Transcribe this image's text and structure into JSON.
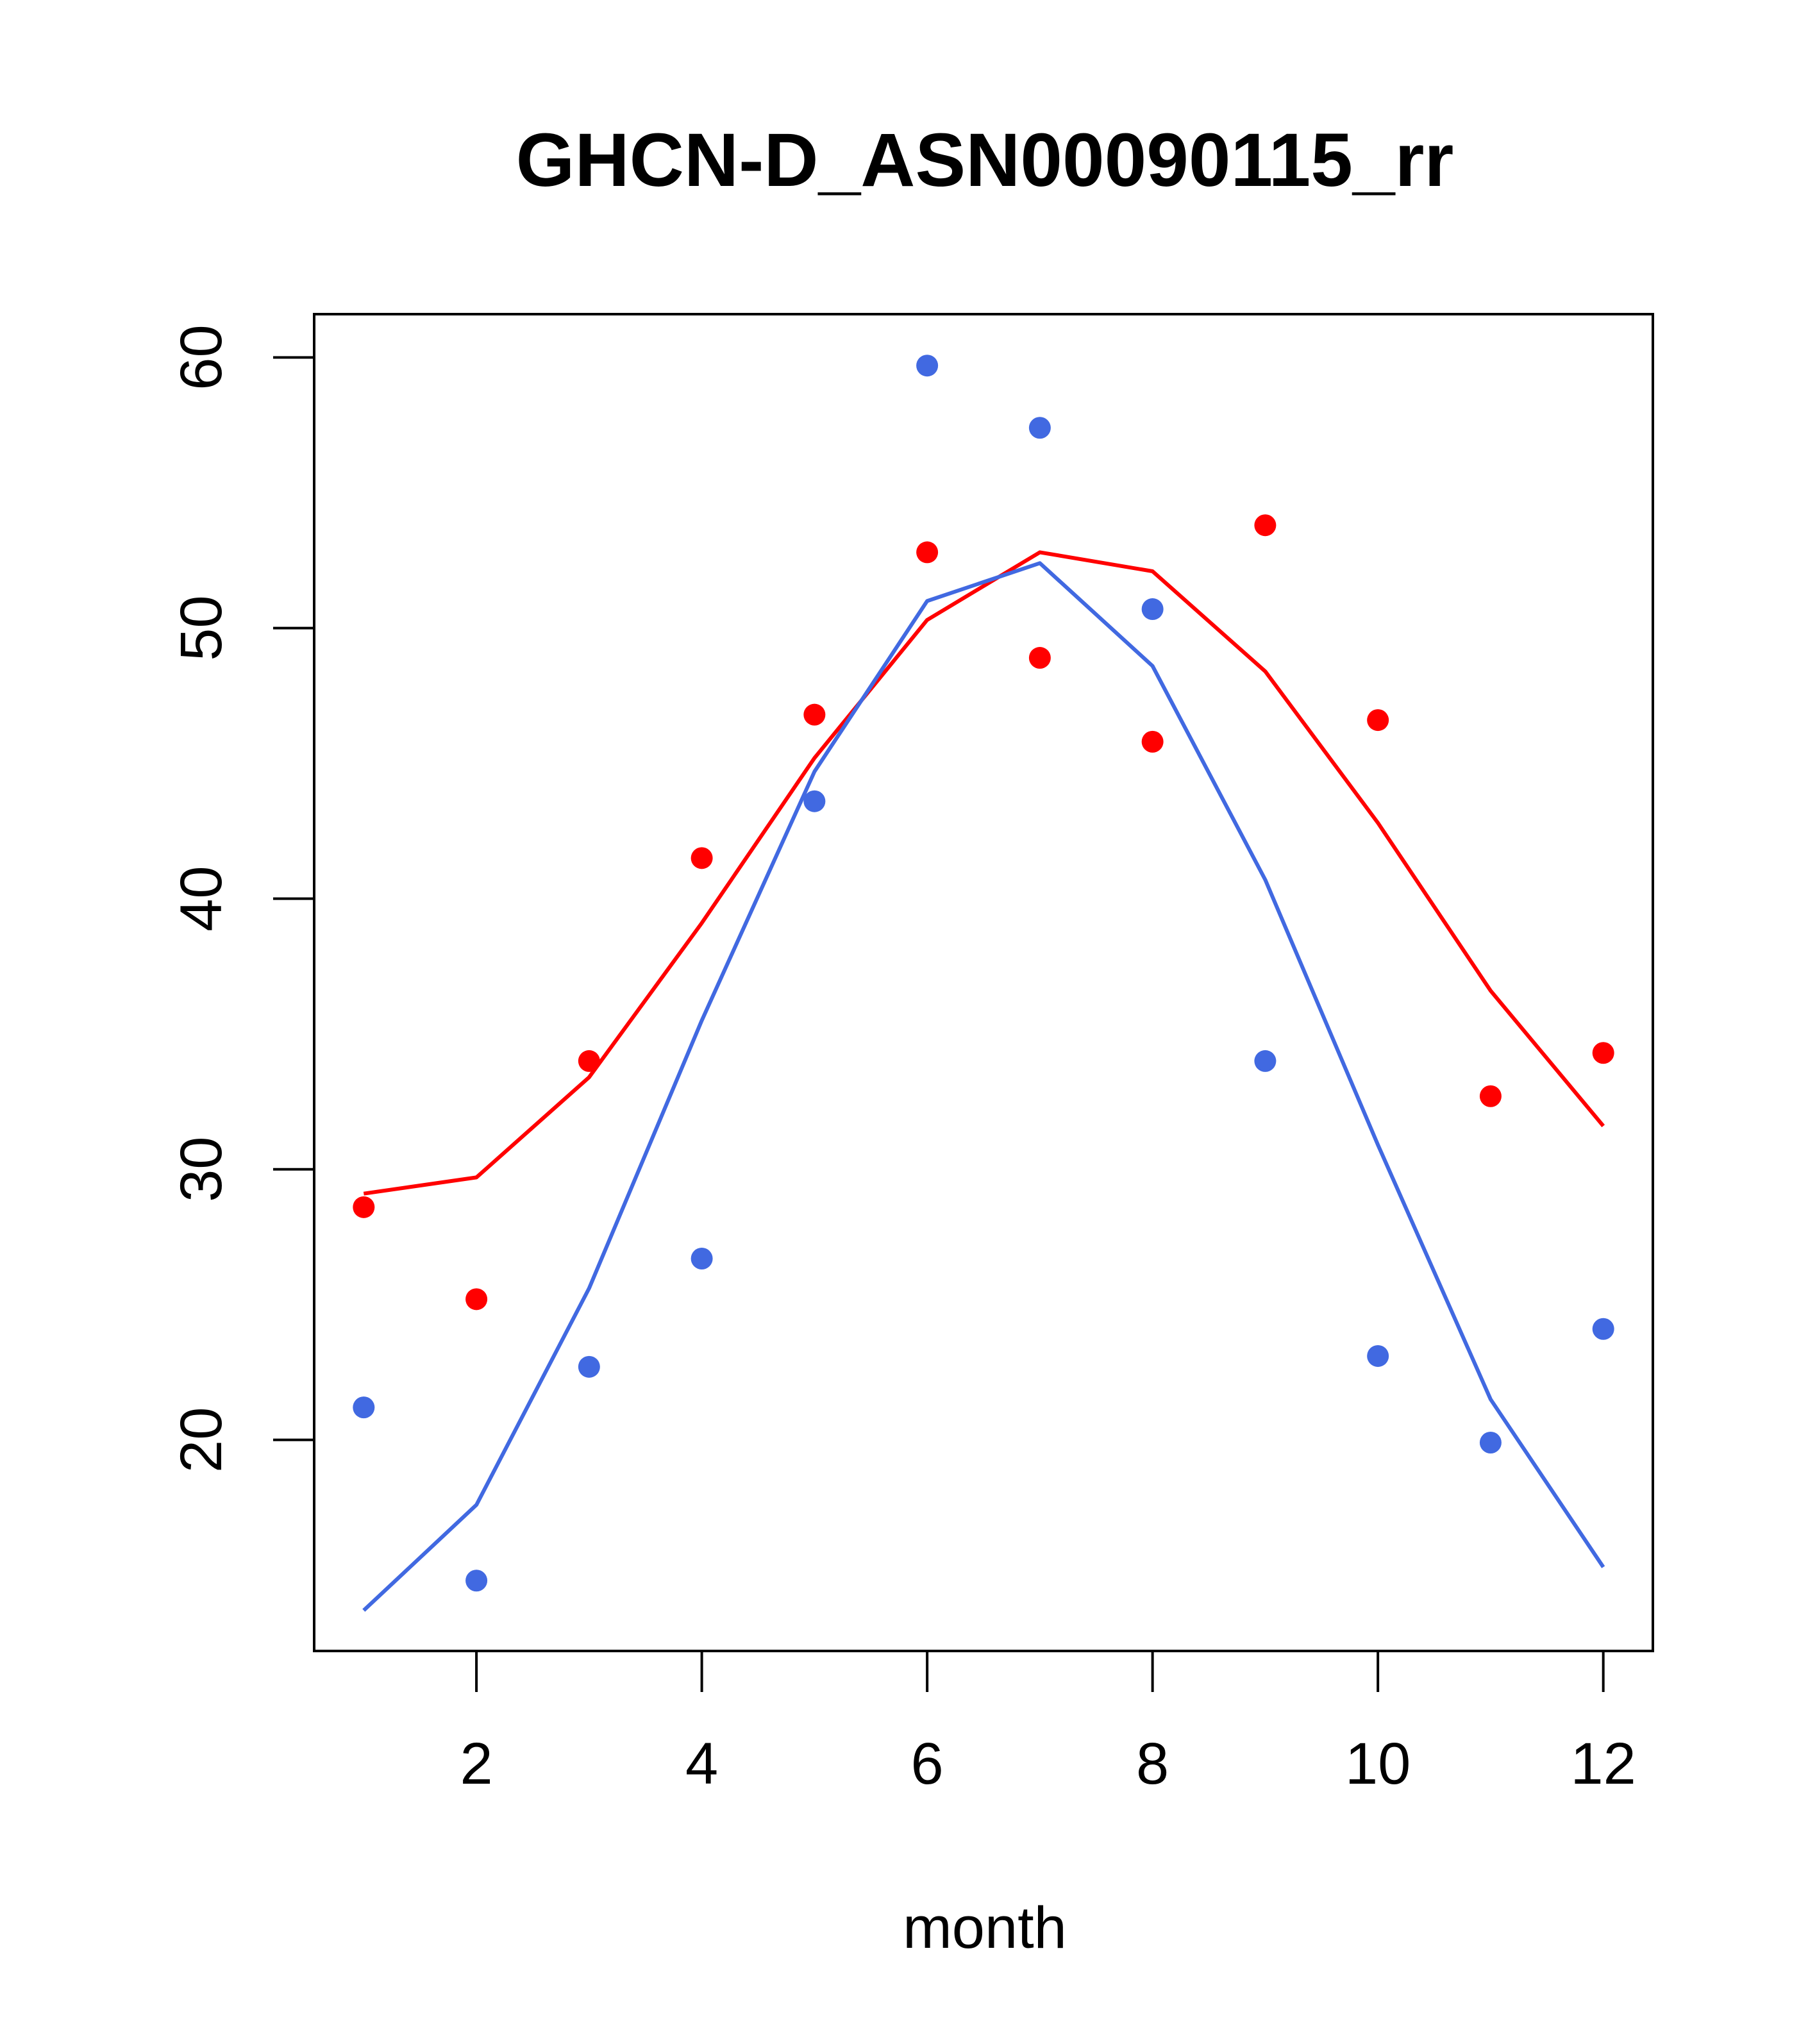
{
  "chart_data": {
    "type": "scatter",
    "title": "GHCN-D_ASN00090115_rr",
    "xlabel": "month",
    "ylabel": "",
    "xlim": [
      0.56,
      12.44
    ],
    "ylim": [
      12.2,
      61.6
    ],
    "x_ticks": [
      2,
      4,
      6,
      8,
      10,
      12
    ],
    "y_ticks": [
      20,
      30,
      40,
      50,
      60
    ],
    "grid": false,
    "legend": "none",
    "series": [
      {
        "color": "#ff0000",
        "points_x": [
          1,
          2,
          3,
          4,
          5,
          6,
          7,
          8,
          9,
          10,
          11,
          12
        ],
        "points_y": [
          28.6,
          25.2,
          34.0,
          41.5,
          46.8,
          52.8,
          48.9,
          45.8,
          53.8,
          46.6,
          32.7,
          34.3
        ],
        "line_x": [
          1,
          2,
          3,
          4,
          5,
          6,
          7,
          8,
          9,
          10,
          11,
          12
        ],
        "line_y": [
          29.1,
          29.7,
          33.4,
          39.1,
          45.2,
          50.3,
          52.8,
          52.1,
          48.4,
          42.8,
          36.6,
          31.6
        ]
      },
      {
        "color": "#4169e1",
        "points_x": [
          1,
          2,
          3,
          4,
          5,
          6,
          7,
          8,
          9,
          10,
          11,
          12
        ],
        "points_y": [
          21.2,
          14.8,
          22.7,
          26.7,
          43.6,
          59.7,
          57.4,
          50.7,
          34.0,
          23.1,
          19.9,
          24.1
        ],
        "line_x": [
          1,
          2,
          3,
          4,
          5,
          6,
          7,
          8,
          9,
          10,
          11,
          12
        ],
        "line_y": [
          13.7,
          17.6,
          25.6,
          35.5,
          44.7,
          51.0,
          52.4,
          48.6,
          40.7,
          30.9,
          21.5,
          15.3
        ]
      }
    ]
  }
}
